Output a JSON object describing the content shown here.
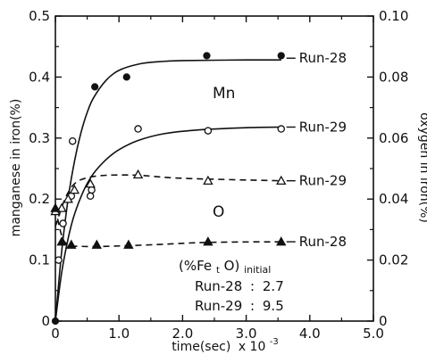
{
  "chart_data": {
    "type": "scatter",
    "xlabel": "time(sec)",
    "xlabel_suffix": "x 10",
    "xlabel_exponent": "-3",
    "ylabel_left": "manganese in iron(%)",
    "ylabel_right": "oxygen in iron(%)",
    "xlim": [
      0,
      5.0
    ],
    "ylim_left": [
      0,
      0.5
    ],
    "ylim_right": [
      0,
      0.1
    ],
    "x_ticks": [
      "0",
      "1.0",
      "2.0",
      "3.0",
      "4.0",
      "5.0"
    ],
    "y_left_ticks": [
      "0",
      "0.1",
      "0.2",
      "0.3",
      "0.4",
      "0.5"
    ],
    "y_right_ticks": [
      "0",
      "0.02",
      "0.04",
      "0.06",
      "0.08",
      "0.10"
    ],
    "grid": false,
    "series": [
      {
        "name": "Run-28",
        "axis": "left",
        "marker": "filled-circle",
        "points": [
          [
            0.0,
            0.0
          ],
          [
            0.62,
            0.384
          ],
          [
            1.12,
            0.4
          ],
          [
            2.38,
            0.435
          ],
          [
            3.55,
            0.435
          ]
        ],
        "curve": [
          [
            0.0,
            0.0
          ],
          [
            0.1,
            0.115
          ],
          [
            0.2,
            0.2
          ],
          [
            0.3,
            0.262
          ],
          [
            0.4,
            0.308
          ],
          [
            0.5,
            0.342
          ],
          [
            0.6,
            0.366
          ],
          [
            0.8,
            0.395
          ],
          [
            1.0,
            0.411
          ],
          [
            1.3,
            0.421
          ],
          [
            1.6,
            0.425
          ],
          [
            2.0,
            0.427
          ],
          [
            3.0,
            0.428
          ],
          [
            3.55,
            0.428
          ]
        ],
        "line_style": "solid"
      },
      {
        "name": "Run-29",
        "axis": "left",
        "marker": "open-circle",
        "points": [
          [
            0.05,
            0.1
          ],
          [
            0.12,
            0.16
          ],
          [
            0.25,
            0.205
          ],
          [
            0.27,
            0.295
          ],
          [
            0.55,
            0.205
          ],
          [
            0.57,
            0.215
          ],
          [
            1.3,
            0.315
          ],
          [
            2.4,
            0.312
          ],
          [
            3.55,
            0.315
          ]
        ],
        "curve": [
          [
            0.0,
            0.0
          ],
          [
            0.1,
            0.08
          ],
          [
            0.2,
            0.135
          ],
          [
            0.3,
            0.175
          ],
          [
            0.45,
            0.215
          ],
          [
            0.6,
            0.242
          ],
          [
            0.8,
            0.265
          ],
          [
            1.0,
            0.281
          ],
          [
            1.3,
            0.296
          ],
          [
            1.7,
            0.307
          ],
          [
            2.2,
            0.313
          ],
          [
            3.0,
            0.317
          ],
          [
            3.55,
            0.318
          ]
        ],
        "line_style": "solid"
      },
      {
        "name": "Run-29",
        "axis": "right",
        "marker": "open-triangle",
        "points": [
          [
            0.0,
            0.036
          ],
          [
            0.1,
            0.037
          ],
          [
            0.2,
            0.04
          ],
          [
            0.3,
            0.043
          ],
          [
            0.55,
            0.045
          ],
          [
            1.3,
            0.048
          ],
          [
            2.4,
            0.046
          ],
          [
            3.55,
            0.046
          ]
        ],
        "curve": [
          [
            0.0,
            0.031
          ],
          [
            0.15,
            0.04
          ],
          [
            0.3,
            0.045
          ],
          [
            0.5,
            0.047
          ],
          [
            0.8,
            0.0478
          ],
          [
            1.3,
            0.0478
          ],
          [
            2.0,
            0.0468
          ],
          [
            3.55,
            0.046
          ]
        ],
        "line_style": "dashed"
      },
      {
        "name": "Run-28",
        "axis": "right",
        "marker": "filled-triangle",
        "points": [
          [
            0.0,
            0.037
          ],
          [
            0.1,
            0.026
          ],
          [
            0.25,
            0.025
          ],
          [
            0.65,
            0.025
          ],
          [
            1.15,
            0.025
          ],
          [
            2.4,
            0.026
          ],
          [
            3.55,
            0.026
          ]
        ],
        "curve": [
          [
            0.0,
            0.037
          ],
          [
            0.1,
            0.028
          ],
          [
            0.2,
            0.025
          ],
          [
            0.4,
            0.0245
          ],
          [
            0.8,
            0.0245
          ],
          [
            1.5,
            0.025
          ],
          [
            2.4,
            0.0258
          ],
          [
            3.55,
            0.026
          ]
        ],
        "line_style": "dashed"
      }
    ],
    "annotations": {
      "mn_label": "Mn",
      "o_label": "O",
      "initial_label": "(%Fe",
      "initial_sub": "t",
      "initial_label_tail": "O)",
      "initial_suffix": "initial",
      "initial_values": [
        {
          "run": "Run-28",
          "separator": ":",
          "value": "2.7"
        },
        {
          "run": "Run-29",
          "separator": ":",
          "value": "9.5"
        }
      ]
    }
  }
}
